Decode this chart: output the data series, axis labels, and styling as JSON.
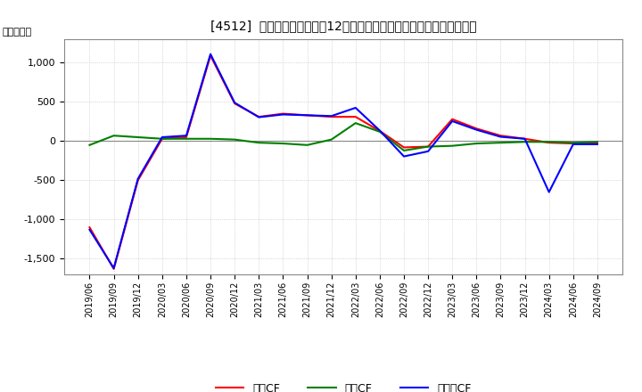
{
  "title": "[4512]  キャッシュフローの12か月移動合計の対前年同期増減額の推移",
  "ylabel": "（百万円）",
  "background_color": "#ffffff",
  "plot_bg_color": "#ffffff",
  "grid_color": "#aaaaaa",
  "dates": [
    "2019/06",
    "2019/09",
    "2019/12",
    "2020/03",
    "2020/06",
    "2020/09",
    "2020/12",
    "2021/03",
    "2021/06",
    "2021/09",
    "2021/12",
    "2022/03",
    "2022/06",
    "2022/09",
    "2022/12",
    "2023/03",
    "2023/06",
    "2023/09",
    "2023/12",
    "2024/03",
    "2024/06",
    "2024/09"
  ],
  "operating_cf": [
    -1100,
    -1630,
    -500,
    30,
    50,
    1090,
    480,
    310,
    350,
    330,
    310,
    310,
    130,
    -80,
    -70,
    280,
    160,
    70,
    30,
    -20,
    -30,
    -30
  ],
  "investing_cf": [
    -50,
    70,
    50,
    30,
    30,
    30,
    20,
    -20,
    -30,
    -50,
    20,
    230,
    120,
    -120,
    -70,
    -60,
    -30,
    -20,
    -10,
    -10,
    -20,
    -10
  ],
  "free_cf": [
    -1130,
    -1620,
    -480,
    50,
    70,
    1110,
    490,
    305,
    340,
    330,
    320,
    425,
    135,
    -195,
    -130,
    255,
    145,
    55,
    30,
    -650,
    -40,
    -40
  ],
  "operating_color": "#ff0000",
  "investing_color": "#008000",
  "free_color": "#0000ff",
  "ylim": [
    -1700,
    1300
  ],
  "yticks": [
    -1500,
    -1000,
    -500,
    0,
    500,
    1000
  ],
  "legend_labels": [
    "営業CF",
    "投資CF",
    "フリーCF"
  ],
  "title_prefix": "[4512]",
  "line_width": 1.5
}
